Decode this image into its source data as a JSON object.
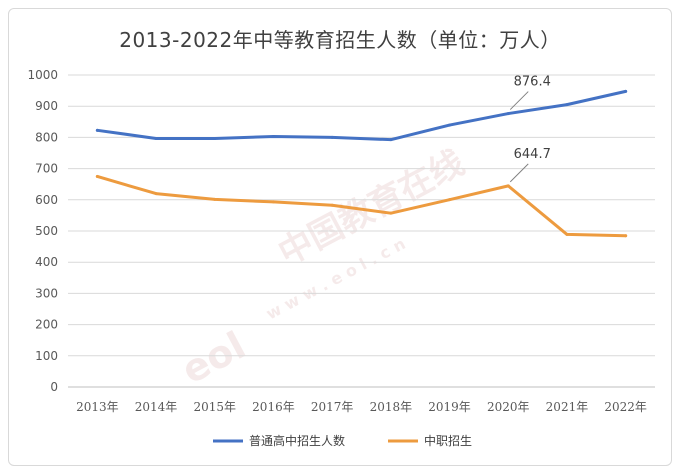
{
  "chart_data": {
    "type": "line",
    "title": "2013-2022年中等教育招生人数（单位：万人）",
    "categories": [
      "2013年",
      "2014年",
      "2015年",
      "2016年",
      "2017年",
      "2018年",
      "2019年",
      "2020年",
      "2021年",
      "2022年"
    ],
    "ylim": [
      0,
      1000
    ],
    "yticks": [
      0,
      100,
      200,
      300,
      400,
      500,
      600,
      700,
      800,
      900,
      1000
    ],
    "grid": true,
    "legend_position": "bottom",
    "series": [
      {
        "name": "普通高中招生人数",
        "color": "#4472C4",
        "values": [
          822.7,
          796.6,
          796.6,
          802.9,
          800.1,
          792.7,
          839.5,
          876.4,
          905.0,
          947.5
        ]
      },
      {
        "name": "中职招生",
        "color": "#ED9B3F",
        "values": [
          674.8,
          619.8,
          601.2,
          593.3,
          582.4,
          557.1,
          600.4,
          644.7,
          489.0,
          484.8
        ]
      }
    ],
    "annotations": [
      {
        "series": 0,
        "index": 7,
        "text": "876.4"
      },
      {
        "series": 1,
        "index": 7,
        "text": "644.7"
      }
    ]
  },
  "watermark": {
    "brand": "eol",
    "text": "中国教育在线",
    "url": "w w w . e o l . c n"
  }
}
